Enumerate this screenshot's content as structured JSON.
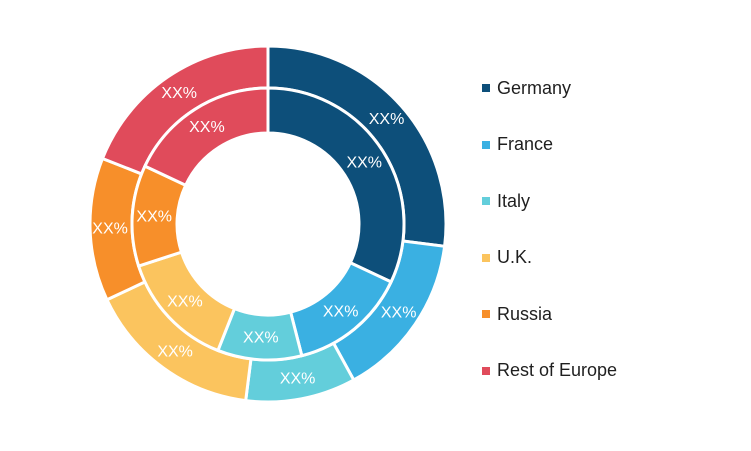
{
  "chart_data": {
    "type": "donut",
    "rings": [
      {
        "name": "outer",
        "values": [
          27,
          15,
          10,
          16,
          13,
          19
        ],
        "labels": [
          "XX%",
          "XX%",
          "XX%",
          "XX%",
          "XX%",
          "XX%"
        ]
      },
      {
        "name": "inner",
        "values": [
          32,
          14,
          10,
          14,
          12,
          18
        ],
        "labels": [
          "XX%",
          "XX%",
          "XX%",
          "XX%",
          "XX%",
          "XX%"
        ]
      }
    ],
    "categories": [
      "Germany",
      "France",
      "Italy",
      "U.K.",
      "Russia",
      "Rest of Europe"
    ],
    "colors": [
      "#0d4f7a",
      "#3ab0e2",
      "#63cedb",
      "#fbc45e",
      "#f78f2a",
      "#e04b5b"
    ],
    "legend_position": "right"
  }
}
